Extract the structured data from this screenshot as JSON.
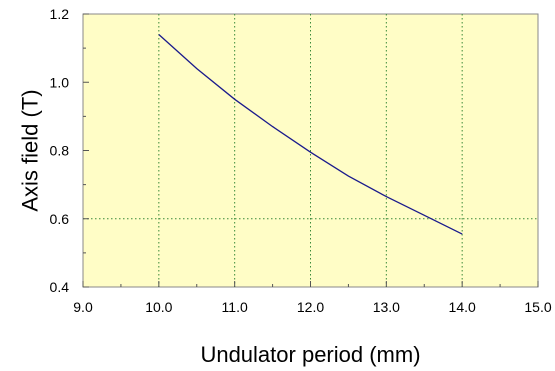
{
  "chart_data": {
    "type": "line",
    "title": "",
    "xlabel": "Undulator period (mm)",
    "ylabel": "Axis field (T)",
    "xlim": [
      9.0,
      15.0
    ],
    "ylim": [
      0.4,
      1.2
    ],
    "xticks": [
      "9.0",
      "10.0",
      "11.0",
      "12.0",
      "13.0",
      "14.0",
      "15.0"
    ],
    "yticks": [
      "0.4",
      "0.6",
      "0.8",
      "1.0",
      "1.2"
    ],
    "xgrid": [
      10.0,
      11.0,
      12.0,
      13.0,
      14.0
    ],
    "ygrid": [
      0.6
    ],
    "grid": true,
    "legend": "none",
    "series": [
      {
        "x": [
          10.0,
          10.5,
          11.0,
          11.5,
          12.0,
          12.5,
          13.0,
          13.5,
          14.0
        ],
        "y": [
          1.14,
          1.04,
          0.95,
          0.87,
          0.795,
          0.725,
          0.665,
          0.61,
          0.555
        ]
      }
    ]
  },
  "colors": {
    "plot_background": "#fffdc6",
    "plot_border": "#888888",
    "grid": "#3a8a3a",
    "line": "#1a1a8c"
  }
}
